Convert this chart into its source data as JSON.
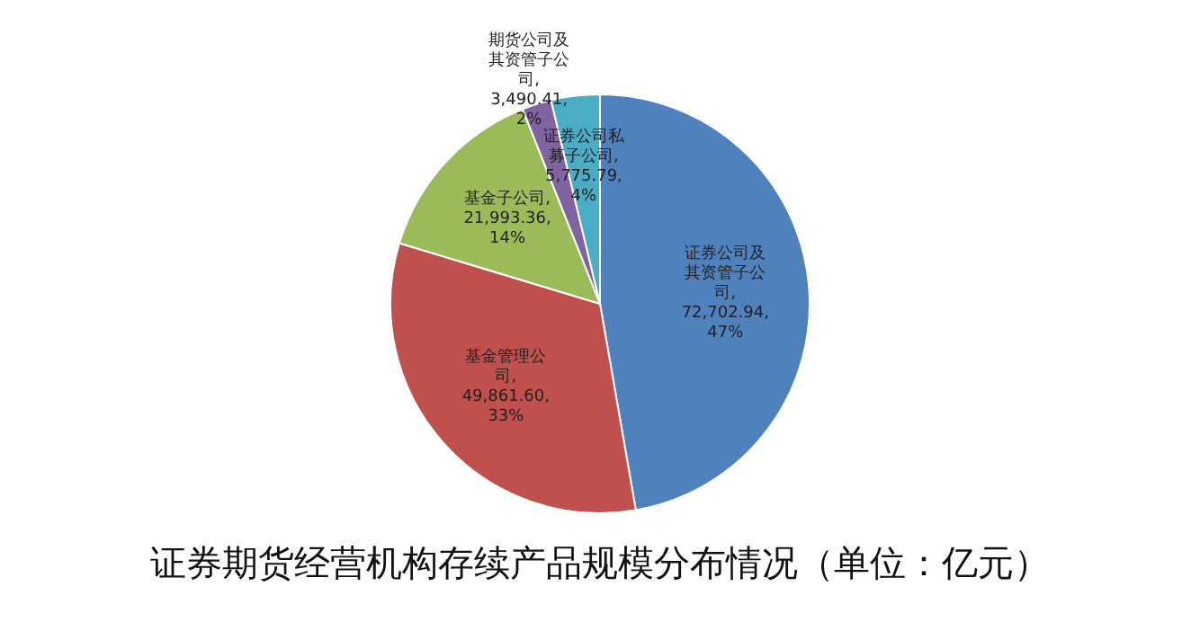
{
  "chart_data": {
    "type": "pie",
    "title": "证券期货经营机构存续产品规模分布情况（单位：亿元）",
    "categories": [
      "证券公司及其资管子公司",
      "基金管理公司",
      "基金子公司",
      "期货公司及其资管子公司",
      "证券公司私募子公司"
    ],
    "values": [
      72702.94,
      49861.6,
      21993.36,
      3490.41,
      5775.79
    ],
    "colors": [
      "#4f81bd",
      "#c0504d",
      "#9bbb59",
      "#8064a2",
      "#4bacc6"
    ],
    "value_labels": [
      ", 72,702.94, 47%",
      ", 49,861.60, 33%",
      ", 21,993.36, 14%",
      ", 3,490.41, 2%",
      ", 5,775.79, 4%"
    ],
    "legend": false
  }
}
